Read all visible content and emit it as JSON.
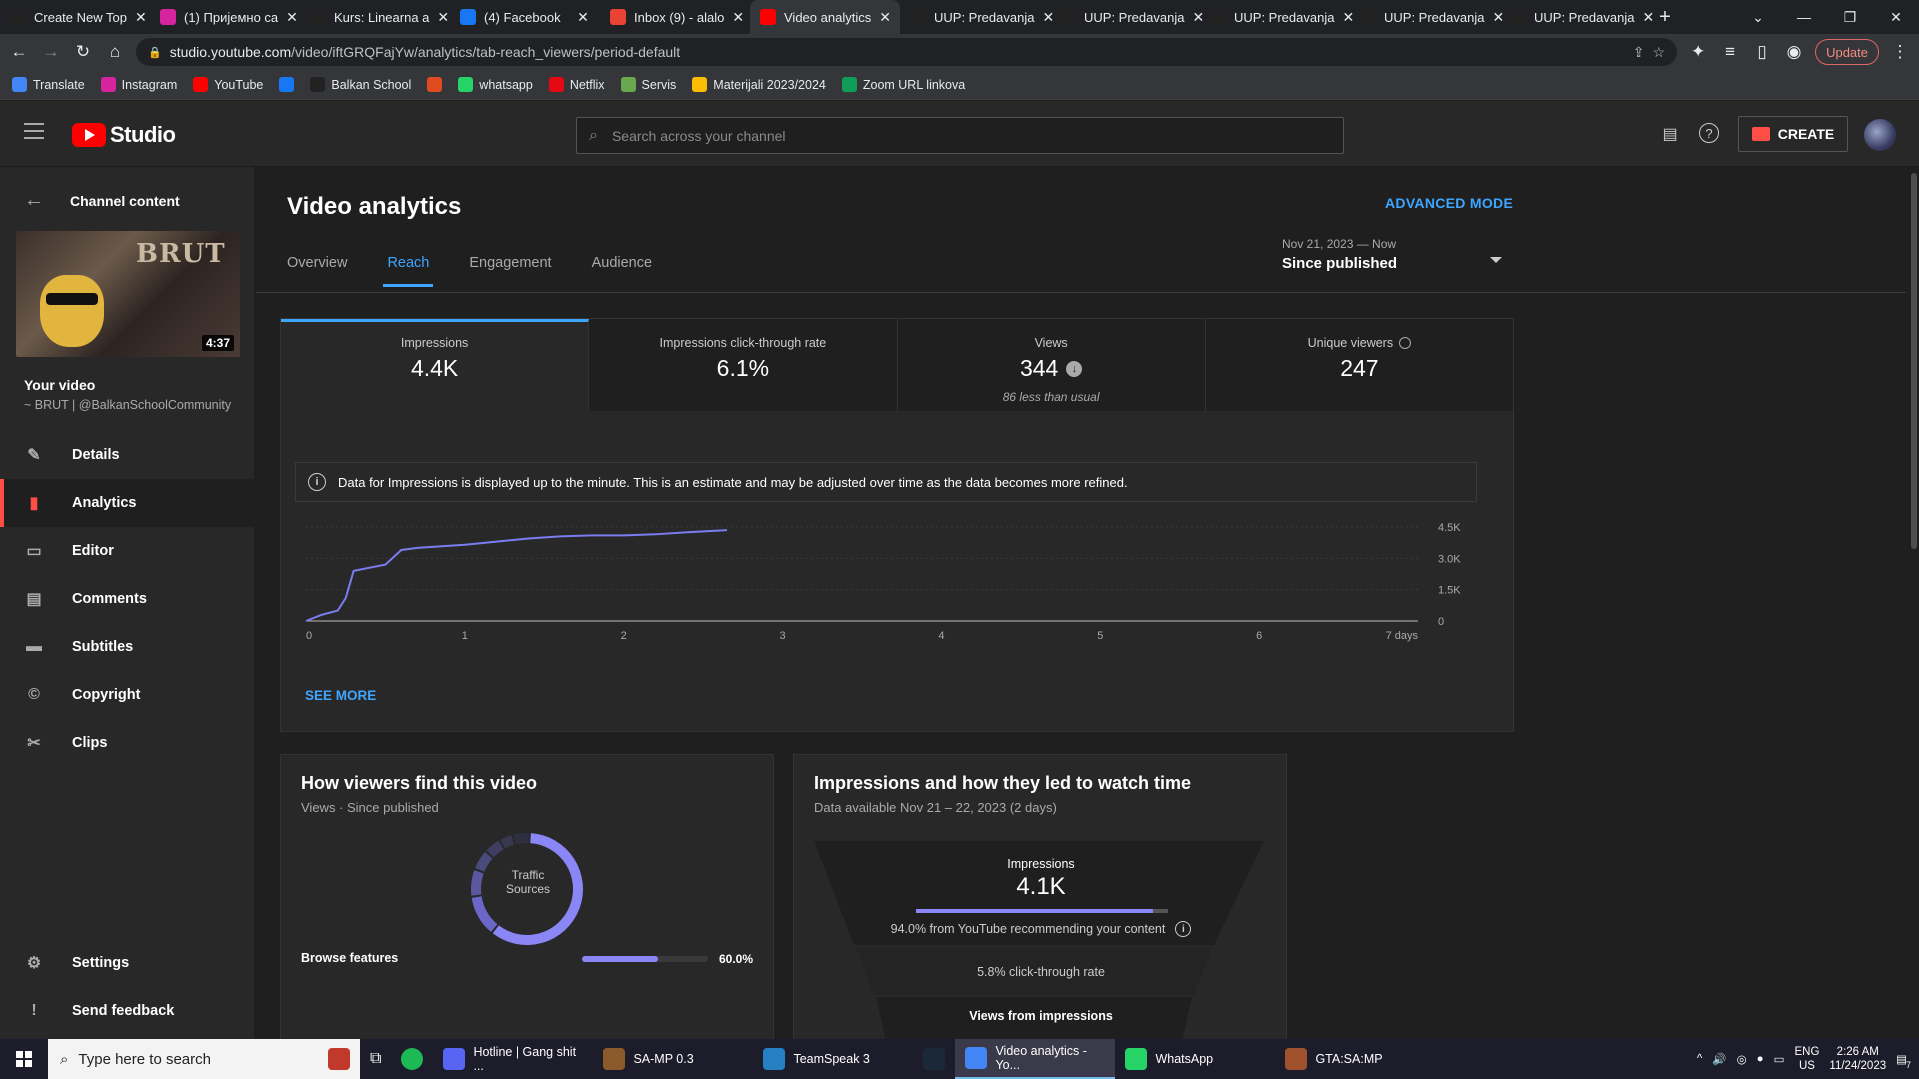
{
  "browser": {
    "tabs": [
      {
        "title": "Create New Top",
        "icon": "balkan-school-icon",
        "color": "#222222"
      },
      {
        "title": "(1) Пријемно са",
        "icon": "instagram-icon",
        "color": "#d6249f"
      },
      {
        "title": "Kurs: Linearna a",
        "icon": "moodle-icon",
        "color": "#222222"
      },
      {
        "title": "(4) Facebook",
        "icon": "facebook-icon",
        "color": "#1877f2"
      },
      {
        "title": "Inbox (9) - alalo",
        "icon": "gmail-icon",
        "color": "#ea4335"
      },
      {
        "title": "Video analytics",
        "icon": "youtube-icon",
        "color": "#ff0000"
      },
      {
        "title": "UUP: Predavanja",
        "icon": "moodle-icon",
        "color": "#222222"
      },
      {
        "title": "UUP: Predavanja",
        "icon": "moodle-icon",
        "color": "#222222"
      },
      {
        "title": "UUP: Predavanja",
        "icon": "moodle-icon",
        "color": "#222222"
      },
      {
        "title": "UUP: Predavanja",
        "icon": "moodle-icon",
        "color": "#222222"
      },
      {
        "title": "UUP: Predavanja",
        "icon": "moodle-icon",
        "color": "#222222"
      }
    ],
    "url_host": "studio.youtube.com",
    "url_path": "/video/iftGRQFajYw/analytics/tab-reach_viewers/period-default",
    "update_label": "Update",
    "bookmarks": [
      {
        "label": "Translate",
        "color": "#4285f4"
      },
      {
        "label": "Instagram",
        "color": "#d6249f"
      },
      {
        "label": "YouTube",
        "color": "#ff0000"
      },
      {
        "label": "",
        "color": "#1877f2"
      },
      {
        "label": "Balkan School",
        "color": "#222222"
      },
      {
        "label": "",
        "color": "#e04a1f"
      },
      {
        "label": "whatsapp",
        "color": "#25d366"
      },
      {
        "label": "Netflix",
        "color": "#e50914"
      },
      {
        "label": "Servis",
        "color": "#6aa84f"
      },
      {
        "label": "Materijali 2023/2024",
        "color": "#fbbc04"
      },
      {
        "label": "Zoom URL linkova",
        "color": "#0f9d58"
      }
    ]
  },
  "studio": {
    "logo_text": "Studio",
    "search_placeholder": "Search across your channel",
    "create_label": "CREATE"
  },
  "sidebar": {
    "back_label": "Channel content",
    "duration": "4:37",
    "thumb_text": "BRUT",
    "your_video": "Your video",
    "channel": "~ BRUT | @BalkanSchoolCommunity",
    "items": [
      {
        "label": "Details",
        "icon": "pencil-icon"
      },
      {
        "label": "Analytics",
        "icon": "analytics-icon",
        "active": true
      },
      {
        "label": "Editor",
        "icon": "editor-icon"
      },
      {
        "label": "Comments",
        "icon": "comments-icon"
      },
      {
        "label": "Subtitles",
        "icon": "subtitles-icon"
      },
      {
        "label": "Copyright",
        "icon": "copyright-icon"
      },
      {
        "label": "Clips",
        "icon": "scissors-icon"
      }
    ],
    "bottom": [
      {
        "label": "Settings",
        "icon": "gear-icon"
      },
      {
        "label": "Send feedback",
        "icon": "feedback-icon"
      }
    ]
  },
  "main": {
    "title": "Video analytics",
    "advanced_mode": "ADVANCED MODE",
    "tabs": [
      "Overview",
      "Reach",
      "Engagement",
      "Audience"
    ],
    "active_tab": 1,
    "period_range": "Nov 21, 2023 — Now",
    "period_label": "Since published",
    "metrics": [
      {
        "label": "Impressions",
        "value": "4.4K"
      },
      {
        "label": "Impressions click-through rate",
        "value": "6.1%"
      },
      {
        "label": "Views",
        "value": "344",
        "sub": "86 less than usual"
      },
      {
        "label": "Unique viewers",
        "value": "247"
      }
    ],
    "notice": "Data for Impressions is displayed up to the minute. This is an estimate and may be adjusted over time as the data becomes more refined.",
    "see_more": "SEE MORE",
    "traffic": {
      "title": "How viewers find this video",
      "sub": "Views · Since published",
      "donut_label": "Traffic Sources",
      "first_row_label": "Browse features",
      "first_row_value": "60.0%"
    },
    "funnel": {
      "title": "Impressions and how they led to watch time",
      "sub": "Data available Nov 21 – 22, 2023 (2 days)",
      "impressions_label": "Impressions",
      "impressions_value": "4.1K",
      "impressions_note": "94.0% from YouTube recommending your content",
      "ctr": "5.8% click-through rate",
      "views_label": "Views from impressions"
    }
  },
  "chart_data": {
    "type": "line",
    "x": [
      0,
      0.1,
      0.2,
      0.25,
      0.3,
      0.5,
      0.6,
      0.7,
      1.0,
      1.2,
      1.4,
      1.6,
      1.8,
      2.0,
      2.2,
      2.4,
      2.65
    ],
    "y": [
      0,
      300,
      500,
      1100,
      2400,
      2700,
      3400,
      3500,
      3650,
      3800,
      3950,
      4050,
      4100,
      4100,
      4150,
      4250,
      4350
    ],
    "xlim": [
      0,
      7
    ],
    "ylim": [
      0,
      4500
    ],
    "x_ticks": [
      "0",
      "1",
      "2",
      "3",
      "4",
      "5",
      "6",
      "7 days"
    ],
    "y_ticks": [
      "0",
      "1.5K",
      "3.0K",
      "4.5K"
    ],
    "series_color": "#7b7cf0"
  },
  "traffic_chart": {
    "type": "pie",
    "values": [
      60,
      12,
      8,
      6,
      5,
      4,
      5
    ],
    "colors": [
      "#8a86f5",
      "#6b67c8",
      "#5b589f",
      "#4b4a7c",
      "#3f3e62",
      "#37374f",
      "#2f2f42"
    ],
    "bar_fraction": 0.6
  },
  "funnel_data": {
    "impressions_youtube_fraction": 0.94
  },
  "taskbar": {
    "search_placeholder": "Type here to search",
    "apps": [
      {
        "label": "Hotline | Gang shit ...",
        "icon": "discord-icon",
        "color": "#5865f2"
      },
      {
        "label": "SA-MP 0.3",
        "icon": "samp-icon",
        "color": "#8b5a2b"
      },
      {
        "label": "TeamSpeak 3",
        "icon": "teamspeak-icon",
        "color": "#2580c3"
      },
      {
        "label": "",
        "icon": "steam-icon",
        "color": "#1b2838"
      },
      {
        "label": "Video analytics - Yo...",
        "icon": "chrome-icon",
        "color": "#4285f4",
        "active": true
      },
      {
        "label": "WhatsApp",
        "icon": "whatsapp-icon",
        "color": "#25d366"
      },
      {
        "label": "GTA:SA:MP",
        "icon": "gta-icon",
        "color": "#a0522d"
      }
    ],
    "lang_top": "ENG",
    "lang_bottom": "US",
    "time": "2:26 AM",
    "date": "11/24/2023",
    "notif_count": "7"
  }
}
